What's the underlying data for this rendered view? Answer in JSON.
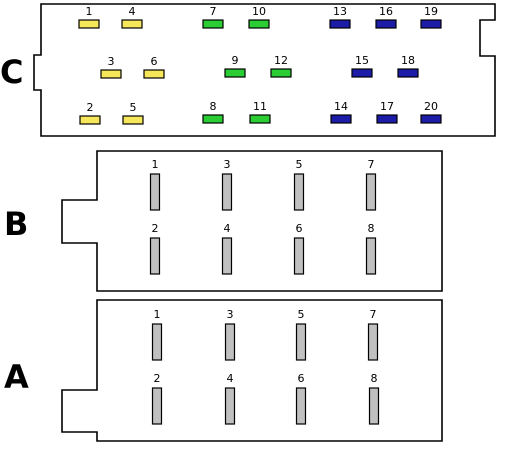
{
  "colors": {
    "yellow": "#f5e65a",
    "green": "#2bcd34",
    "blue": "#1c1ca8",
    "grey": "#c0c0c0"
  },
  "connectors": {
    "C": {
      "label": "C",
      "pins": [
        {
          "num": "1",
          "color": "yellow"
        },
        {
          "num": "4",
          "color": "yellow"
        },
        {
          "num": "3",
          "color": "yellow"
        },
        {
          "num": "6",
          "color": "yellow"
        },
        {
          "num": "2",
          "color": "yellow"
        },
        {
          "num": "5",
          "color": "yellow"
        },
        {
          "num": "7",
          "color": "green"
        },
        {
          "num": "10",
          "color": "green"
        },
        {
          "num": "9",
          "color": "green"
        },
        {
          "num": "12",
          "color": "green"
        },
        {
          "num": "8",
          "color": "green"
        },
        {
          "num": "11",
          "color": "green"
        },
        {
          "num": "13",
          "color": "blue"
        },
        {
          "num": "16",
          "color": "blue"
        },
        {
          "num": "19",
          "color": "blue"
        },
        {
          "num": "15",
          "color": "blue"
        },
        {
          "num": "18",
          "color": "blue"
        },
        {
          "num": "14",
          "color": "blue"
        },
        {
          "num": "17",
          "color": "blue"
        },
        {
          "num": "20",
          "color": "blue"
        }
      ]
    },
    "B": {
      "label": "B",
      "pins": [
        {
          "num": "1",
          "color": "grey"
        },
        {
          "num": "3",
          "color": "grey"
        },
        {
          "num": "5",
          "color": "grey"
        },
        {
          "num": "7",
          "color": "grey"
        },
        {
          "num": "2",
          "color": "grey"
        },
        {
          "num": "4",
          "color": "grey"
        },
        {
          "num": "6",
          "color": "grey"
        },
        {
          "num": "8",
          "color": "grey"
        }
      ]
    },
    "A": {
      "label": "A",
      "pins": [
        {
          "num": "1",
          "color": "grey"
        },
        {
          "num": "3",
          "color": "grey"
        },
        {
          "num": "5",
          "color": "grey"
        },
        {
          "num": "7",
          "color": "grey"
        },
        {
          "num": "2",
          "color": "grey"
        },
        {
          "num": "4",
          "color": "grey"
        },
        {
          "num": "6",
          "color": "grey"
        },
        {
          "num": "8",
          "color": "grey"
        }
      ]
    }
  }
}
